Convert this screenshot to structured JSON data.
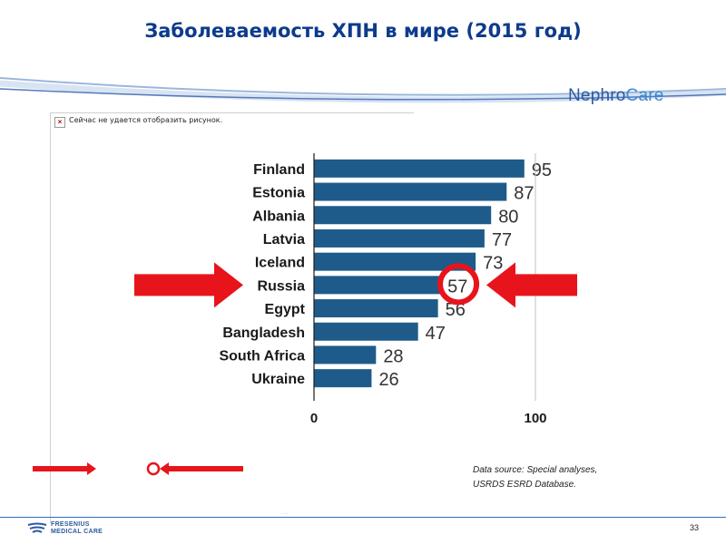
{
  "slide": {
    "title": "Заболеваемость ХПН в мире (2015 год)",
    "brand_part1": "Nephro",
    "brand_part2": "Care",
    "broken_image_text": "Сейчас не удается отобразить рисунок.",
    "source_line1": "Data source: Special analyses,",
    "source_line2": "USRDS ESRD Database.",
    "page_number": "33",
    "footer_line1": "FRESENIUS",
    "footer_line2": "MEDICAL CARE",
    "faint_text": "...",
    "colors": {
      "title": "#0d3b8c",
      "bar": "#1f5b8a",
      "highlight": "#e8141c",
      "brand": "#2a5a9f"
    }
  },
  "chart_data": {
    "type": "bar",
    "orientation": "horizontal",
    "categories": [
      "Finland",
      "Estonia",
      "Albania",
      "Latvia",
      "Iceland",
      "Russia",
      "Egypt",
      "Bangladesh",
      "South Africa",
      "Ukraine"
    ],
    "values": [
      95,
      87,
      80,
      77,
      73,
      57,
      56,
      47,
      28,
      26
    ],
    "value_labels": [
      "95",
      "87",
      "80",
      "77",
      "73",
      "57",
      "56",
      "47",
      "28",
      "26"
    ],
    "ticks": [
      "0",
      "100"
    ],
    "xlim": [
      0,
      100
    ],
    "highlight": "Russia"
  }
}
